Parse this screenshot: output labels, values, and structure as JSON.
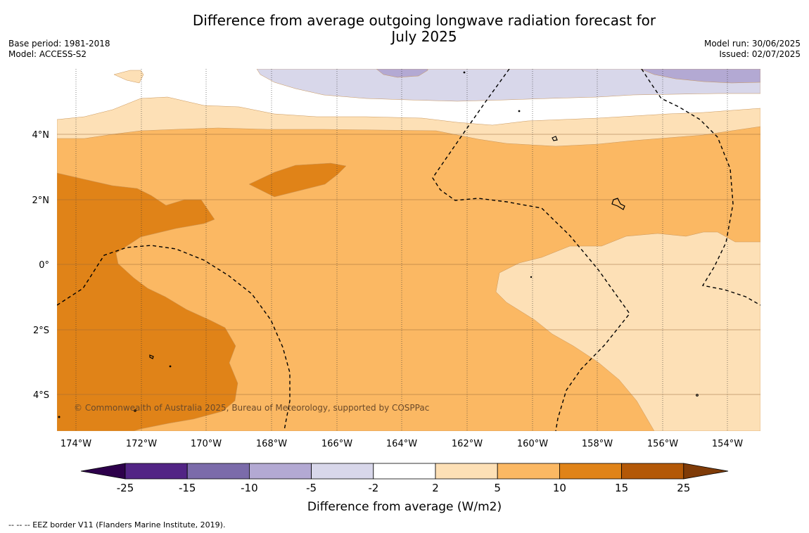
{
  "title_line1": "Difference from average outgoing longwave radiation forecast for",
  "title_line2": "July 2025",
  "base_period": "Base period: 1981-2018",
  "model": "Model: ACCESS-S2",
  "model_run": "Model run: 30/06/2025",
  "issued": "Issued: 02/07/2025",
  "copyright": "© Commonwealth of Australia 2025, Bureau of Meteorology, supported by COSPPac",
  "footer": "-- -- -- EEZ border V11 (Flanders Marine Institute, 2019).",
  "x_ticks": [
    "174°W",
    "172°W",
    "170°W",
    "168°W",
    "166°W",
    "164°W",
    "162°W",
    "160°W",
    "158°W",
    "156°W",
    "154°W"
  ],
  "y_ticks": [
    "4°N",
    "2°N",
    "0°",
    "2°S",
    "4°S"
  ],
  "colorbar": {
    "title": "Difference from average (W/m2)",
    "labels": [
      "-25",
      "-15",
      "-10",
      "-5",
      "-2",
      "2",
      "5",
      "10",
      "15",
      "25"
    ],
    "colors": [
      "#522485",
      "#7b6baa",
      "#b3a9d3",
      "#d8d7ea",
      "#ffffff",
      "#fde0b6",
      "#fbb863",
      "#e08318",
      "#b35807"
    ],
    "under": "#2d004b",
    "over": "#7f3b08"
  },
  "colors": {
    "c2_5": "#fde0b6",
    "c5_10": "#fbb863",
    "c10_15": "#e08318",
    "n2_5": "#d8d7ea",
    "n5_10": "#b3a9d3"
  }
}
